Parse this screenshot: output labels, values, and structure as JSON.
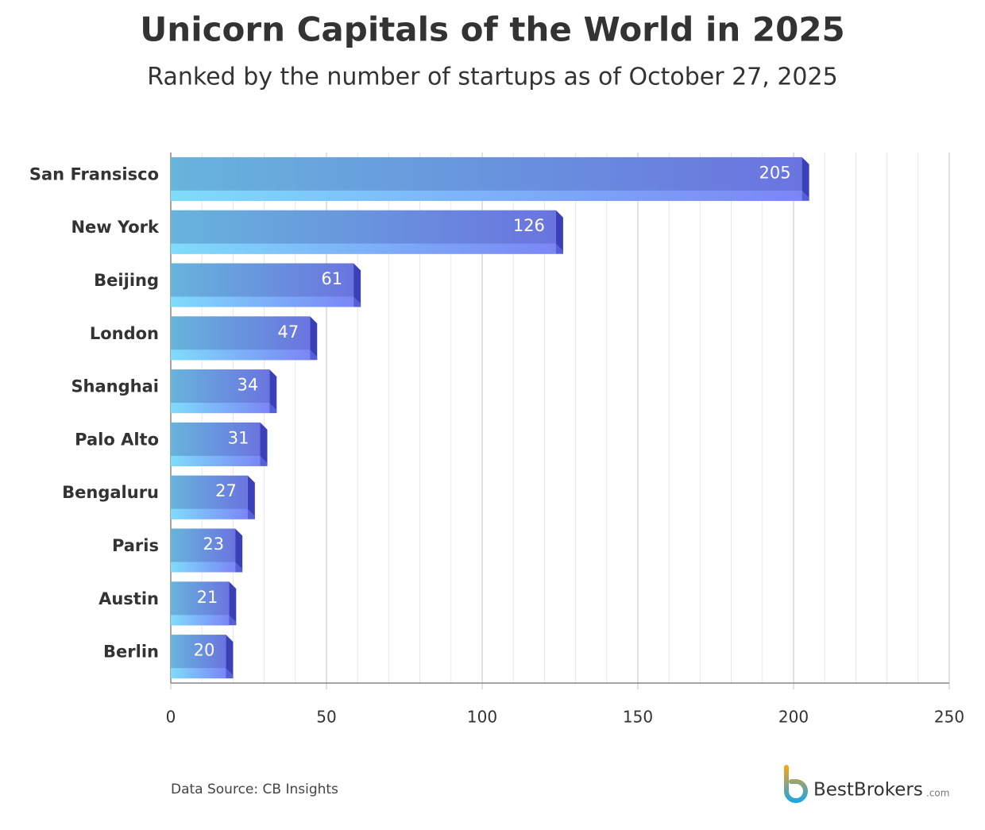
{
  "chart_data": {
    "type": "bar",
    "orientation": "horizontal",
    "title": "Unicorn Capitals of the World in 2025",
    "subtitle": "Ranked by the number of startups as of October 27, 2025",
    "categories": [
      "San Fransisco",
      "New York",
      "Beijing",
      "London",
      "Shanghai",
      "Palo Alto",
      "Bengaluru",
      "Paris",
      "Austin",
      "Berlin"
    ],
    "values": [
      205,
      126,
      61,
      47,
      34,
      31,
      27,
      23,
      21,
      20
    ],
    "color": "#6a7fe0",
    "xlim": [
      0,
      250
    ],
    "xticks": [
      0,
      50,
      100,
      150,
      200,
      250
    ],
    "grid": true,
    "source": "Data Source: CB Insights"
  },
  "logo": {
    "name": "BestBrokers",
    "suffix": ".com"
  }
}
